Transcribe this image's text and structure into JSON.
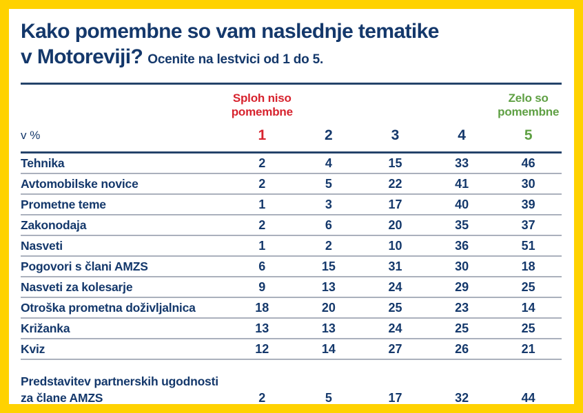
{
  "colors": {
    "frame_yellow": "#FFD200",
    "navy": "#14386B",
    "red": "#D7232E",
    "green": "#5FA044",
    "separator": "#AAB0BC"
  },
  "header": {
    "title_line1": "Kako pomembne so vam naslednje tematike",
    "title_line2": "v Motoreviji?",
    "subtitle": "Ocenite na lestvici od 1 do 5."
  },
  "scale": {
    "low_label": "Sploh niso\npomembne",
    "high_label": "Zelo so\npomembne"
  },
  "table": {
    "unit_label": "v %",
    "columns": [
      "1",
      "2",
      "3",
      "4",
      "5"
    ],
    "rows": [
      {
        "label": "Tehnika",
        "values": [
          2,
          4,
          15,
          33,
          46
        ]
      },
      {
        "label": "Avtomobilske novice",
        "values": [
          2,
          5,
          22,
          41,
          30
        ]
      },
      {
        "label": "Prometne teme",
        "values": [
          1,
          3,
          17,
          40,
          39
        ]
      },
      {
        "label": "Zakonodaja",
        "values": [
          2,
          6,
          20,
          35,
          37
        ]
      },
      {
        "label": "Nasveti",
        "values": [
          1,
          2,
          10,
          36,
          51
        ]
      },
      {
        "label": "Pogovori s člani AMZS",
        "values": [
          6,
          15,
          31,
          30,
          18
        ]
      },
      {
        "label": "Nasveti za kolesarje",
        "values": [
          9,
          13,
          24,
          29,
          25
        ]
      },
      {
        "label": "Otroška prometna doživljalnica",
        "values": [
          18,
          20,
          25,
          23,
          14
        ]
      },
      {
        "label": "Križanka",
        "values": [
          13,
          13,
          24,
          25,
          25
        ]
      },
      {
        "label": "Kviz",
        "values": [
          12,
          14,
          27,
          26,
          21
        ]
      },
      {
        "label": "Predstavitev partnerskih ugodnosti\nza člane AMZS",
        "values": [
          2,
          5,
          17,
          32,
          44
        ]
      }
    ]
  },
  "chart_data": {
    "type": "table",
    "title": "Kako pomembne so vam naslednje tematike v Motoreviji?",
    "subtitle": "Ocenite na lestvici od 1 do 5.",
    "unit": "v %",
    "scale_min_label": "Sploh niso pomembne",
    "scale_max_label": "Zelo so pomembne",
    "columns": [
      "1",
      "2",
      "3",
      "4",
      "5"
    ],
    "rows": [
      {
        "label": "Tehnika",
        "values": [
          2,
          4,
          15,
          33,
          46
        ]
      },
      {
        "label": "Avtomobilske novice",
        "values": [
          2,
          5,
          22,
          41,
          30
        ]
      },
      {
        "label": "Prometne teme",
        "values": [
          1,
          3,
          17,
          40,
          39
        ]
      },
      {
        "label": "Zakonodaja",
        "values": [
          2,
          6,
          20,
          35,
          37
        ]
      },
      {
        "label": "Nasveti",
        "values": [
          1,
          2,
          10,
          36,
          51
        ]
      },
      {
        "label": "Pogovori s člani AMZS",
        "values": [
          6,
          15,
          31,
          30,
          18
        ]
      },
      {
        "label": "Nasveti za kolesarje",
        "values": [
          9,
          13,
          24,
          29,
          25
        ]
      },
      {
        "label": "Otroška prometna doživljalnica",
        "values": [
          18,
          20,
          25,
          23,
          14
        ]
      },
      {
        "label": "Križanka",
        "values": [
          13,
          13,
          24,
          25,
          25
        ]
      },
      {
        "label": "Kviz",
        "values": [
          12,
          14,
          27,
          26,
          21
        ]
      },
      {
        "label": "Predstavitev partnerskih ugodnosti za člane AMZS",
        "values": [
          2,
          5,
          17,
          32,
          44
        ]
      }
    ]
  }
}
